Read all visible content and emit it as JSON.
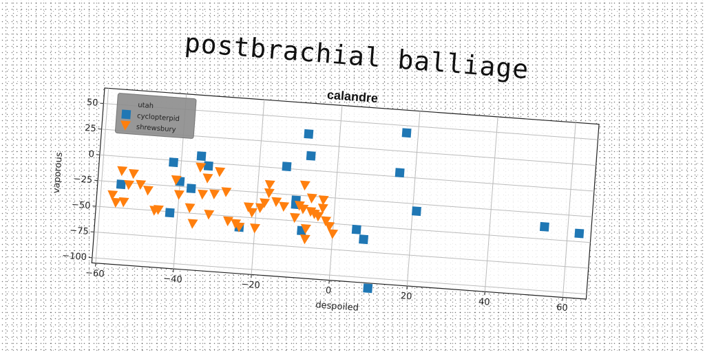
{
  "page_title": "postbrachial balliage",
  "chart_data": {
    "type": "scatter",
    "title": "calandre",
    "xlabel": "despoiled",
    "ylabel": "vaporous",
    "xlim": [
      -61,
      66
    ],
    "ylim": [
      -105,
      65
    ],
    "xticks": [
      -60,
      -40,
      -20,
      0,
      20,
      40,
      60
    ],
    "yticks": [
      50,
      25,
      0,
      -25,
      -50,
      -75,
      -100
    ],
    "grid": true,
    "legend_position": "top-left",
    "series": [
      {
        "name": "utah",
        "marker": "none",
        "color": "#888888",
        "points": []
      },
      {
        "name": "cyclopterpid",
        "marker": "square",
        "color": "#1f77b4",
        "points": [
          [
            -55,
            -27
          ],
          [
            -42,
            -2
          ],
          [
            -42,
            -51
          ],
          [
            -40,
            -20
          ],
          [
            -37,
            -26
          ],
          [
            -35,
            6
          ],
          [
            -33,
            -3
          ],
          [
            -24,
            -60
          ],
          [
            -13,
            2
          ],
          [
            -10,
            -34
          ],
          [
            -10,
            -30
          ],
          [
            -8,
            -59
          ],
          [
            -8,
            35
          ],
          [
            -7,
            14
          ],
          [
            6,
            -54
          ],
          [
            8,
            -63
          ],
          [
            10,
            -110
          ],
          [
            16,
            4
          ],
          [
            17,
            43
          ],
          [
            21,
            -32
          ],
          [
            54,
            -38
          ],
          [
            63,
            -42
          ]
        ]
      },
      {
        "name": "shrewsbury",
        "marker": "triangle-down",
        "color": "#ff7f0e",
        "points": [
          [
            -57,
            -38
          ],
          [
            -56,
            -45
          ],
          [
            -55,
            -14
          ],
          [
            -54,
            -44
          ],
          [
            -53,
            -27
          ],
          [
            -52,
            -16
          ],
          [
            -50,
            -26
          ],
          [
            -48,
            -31
          ],
          [
            -46,
            -50
          ],
          [
            -45,
            -49
          ],
          [
            -41,
            -19
          ],
          [
            -40,
            -33
          ],
          [
            -37,
            -45
          ],
          [
            -36,
            -60
          ],
          [
            -35,
            -5
          ],
          [
            -34,
            -31
          ],
          [
            -33,
            -15
          ],
          [
            -32,
            -50
          ],
          [
            -31,
            -30
          ],
          [
            -30,
            -8
          ],
          [
            -28,
            -27
          ],
          [
            -27,
            -55
          ],
          [
            -25,
            -57
          ],
          [
            -24,
            -60
          ],
          [
            -22,
            -40
          ],
          [
            -21,
            -45
          ],
          [
            -20,
            -60
          ],
          [
            -19,
            -40
          ],
          [
            -18,
            -35
          ],
          [
            -17,
            -17
          ],
          [
            -17,
            -25
          ],
          [
            -15,
            -33
          ],
          [
            -13,
            -37
          ],
          [
            -10,
            -47
          ],
          [
            -9,
            -35
          ],
          [
            -8,
            -38
          ],
          [
            -7,
            -57
          ],
          [
            -7,
            -67
          ],
          [
            -6,
            -27
          ],
          [
            -6,
            -40
          ],
          [
            -5,
            -42
          ],
          [
            -4,
            -44
          ],
          [
            -3,
            -28
          ],
          [
            -2,
            -48
          ],
          [
            -1,
            -53
          ],
          [
            0,
            -60
          ],
          [
            -8,
            -15
          ],
          [
            -3,
            -36
          ]
        ]
      }
    ]
  }
}
